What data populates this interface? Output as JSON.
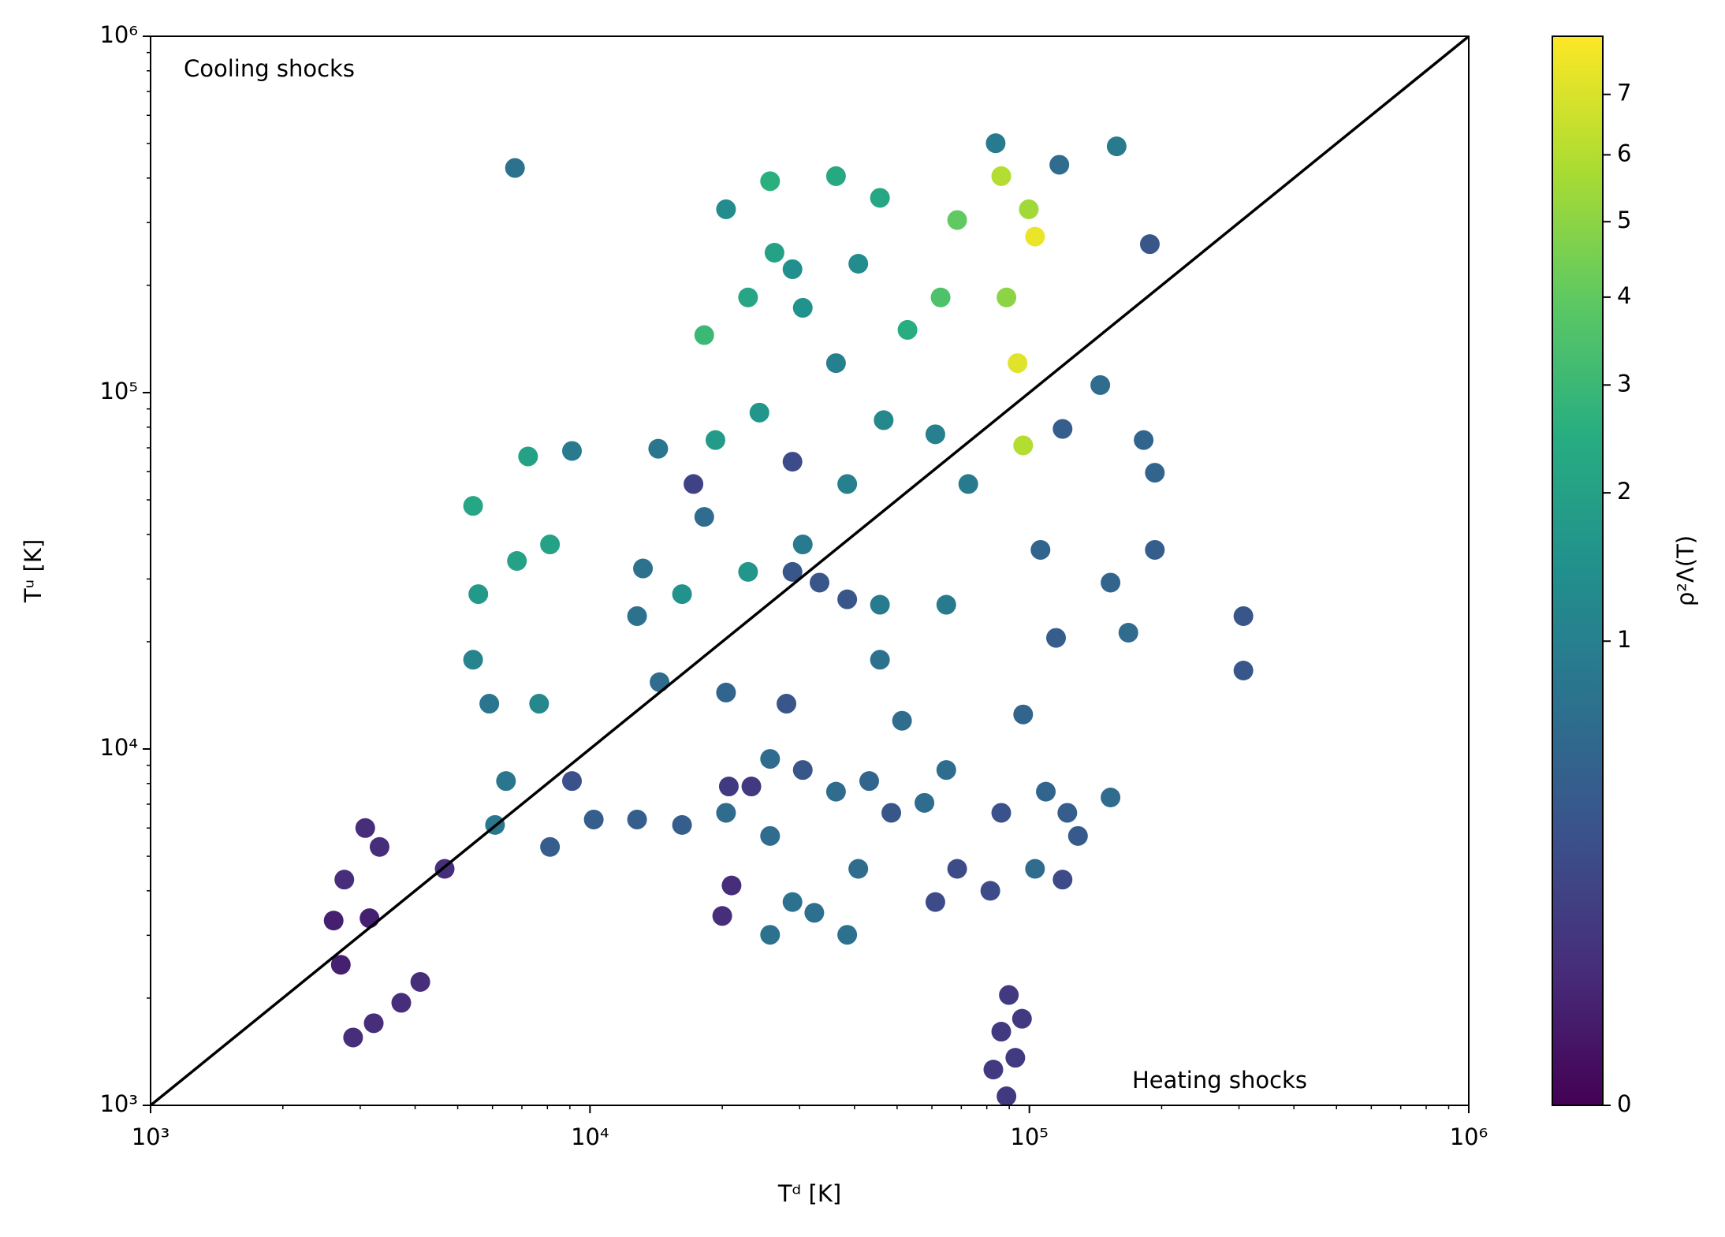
{
  "chart_data": {
    "type": "scatter",
    "xlabel": "Tᵈ [K]",
    "ylabel": "Tᵘ [K]",
    "xscale": "log",
    "yscale": "log",
    "xlim": [
      1000,
      1000000
    ],
    "ylim": [
      1000,
      1000000
    ],
    "xticks": [
      {
        "value": 1000,
        "label": "10³"
      },
      {
        "value": 10000,
        "label": "10⁴"
      },
      {
        "value": 100000,
        "label": "10⁵"
      },
      {
        "value": 1000000,
        "label": "10⁶"
      }
    ],
    "yticks": [
      {
        "value": 1000,
        "label": "10³"
      },
      {
        "value": 10000,
        "label": "10⁴"
      },
      {
        "value": 100000,
        "label": "10⁵"
      },
      {
        "value": 1000000,
        "label": "10⁶"
      }
    ],
    "xminorticks": [
      2000,
      3000,
      4000,
      5000,
      6000,
      7000,
      8000,
      9000,
      20000,
      30000,
      40000,
      50000,
      60000,
      70000,
      80000,
      90000,
      200000,
      300000,
      400000,
      500000,
      600000,
      700000,
      800000,
      900000
    ],
    "yminorticks": [
      2000,
      3000,
      4000,
      5000,
      6000,
      7000,
      8000,
      9000,
      20000,
      30000,
      40000,
      50000,
      60000,
      70000,
      80000,
      90000,
      200000,
      300000,
      400000,
      500000,
      600000,
      700000,
      800000,
      900000
    ],
    "annotations": [
      {
        "text": "Cooling shocks",
        "color": "#0000ff"
      },
      {
        "text": "Heating shocks",
        "color": "#ff0000"
      }
    ],
    "lines": [
      {
        "x": [
          1000,
          1000000
        ],
        "y": [
          1000,
          1000000
        ],
        "color": "#000000"
      }
    ],
    "colormap": "viridis",
    "colorbar": {
      "label": "ρ²Λ(T)",
      "lim": [
        0,
        8.05
      ],
      "gamma": 0.4,
      "ticks": [
        0,
        1,
        2,
        3,
        4,
        5,
        6,
        7
      ]
    },
    "x": [
      6750,
      83800,
      158000,
      117000,
      188000,
      103000,
      94000,
      96800,
      86300,
      99700,
      88700,
      68500,
      62800,
      18200,
      25700,
      36300,
      40800,
      26300,
      30500,
      36300,
      52800,
      45700,
      20400,
      145000,
      182000,
      193000,
      5420,
      7230,
      5570,
      5900,
      7660,
      8110,
      19300,
      24300,
      46600,
      38500,
      61100,
      72600,
      17200,
      28900,
      18200,
      16200,
      22900,
      30500,
      38500,
      30500,
      33300,
      12800,
      14400,
      20400,
      45700,
      64700,
      45700,
      51300,
      106000,
      193000,
      153000,
      307000,
      307000,
      115000,
      96800,
      109000,
      129000,
      103000,
      68500,
      61100,
      81500,
      86300,
      64700,
      43200,
      36300,
      25700,
      20400,
      25700,
      25700,
      28900,
      38500,
      40800,
      32400,
      57700,
      48500,
      6440,
      6080,
      9100,
      8110,
      10200,
      12800,
      16200,
      20700,
      23300,
      21000,
      20000,
      3080,
      3320,
      2760,
      2610,
      3150,
      2710,
      2890,
      3220,
      3720,
      4110,
      4670,
      89800,
      86300,
      96200,
      92900,
      82800,
      88700,
      168000,
      122000,
      153000,
      119000,
      119000,
      28900,
      22900,
      28900,
      28000,
      13200,
      9100,
      14300,
      5420,
      6820
    ],
    "y": [
      427000,
      501000,
      491000,
      436000,
      261000,
      274000,
      121000,
      71100,
      405000,
      327000,
      185000,
      305000,
      185000,
      145000,
      392000,
      405000,
      230000,
      247000,
      173000,
      121000,
      150000,
      352000,
      327000,
      105000,
      73600,
      59600,
      48100,
      66200,
      27200,
      13400,
      13400,
      37500,
      73600,
      87900,
      83700,
      55400,
      76400,
      55400,
      55400,
      64000,
      44800,
      27200,
      31400,
      37500,
      26300,
      8730,
      29300,
      23600,
      15400,
      14400,
      25400,
      25400,
      17800,
      12000,
      36200,
      36200,
      29300,
      23600,
      16600,
      20500,
      12500,
      7590,
      5700,
      4610,
      4610,
      3720,
      4000,
      6620,
      8730,
      8130,
      7590,
      9380,
      6620,
      5700,
      3010,
      3720,
      3010,
      4610,
      3470,
      7060,
      6620,
      8130,
      6120,
      8130,
      5310,
      6340,
      6340,
      6120,
      7850,
      7850,
      4140,
      3400,
      6000,
      5310,
      4300,
      3300,
      3350,
      2480,
      1550,
      1700,
      1940,
      2220,
      4610,
      2040,
      1610,
      1750,
      1360,
      1260,
      1060,
      21200,
      6620,
      7310,
      4300,
      79100,
      222000,
      185000,
      31400,
      13400,
      32100,
      68600,
      69600,
      17800,
      33700
    ],
    "c": [
      0.7,
      0.9,
      0.9,
      0.6,
      0.3,
      7.5,
      7.2,
      6.0,
      6.0,
      5.5,
      5.0,
      4.0,
      3.5,
      3.0,
      2.6,
      2.3,
      1.3,
      2.0,
      1.5,
      1.0,
      2.5,
      2.2,
      1.3,
      0.6,
      0.5,
      0.5,
      2.2,
      2.0,
      1.7,
      0.8,
      1.2,
      2.0,
      1.8,
      1.6,
      1.2,
      1.0,
      1.0,
      0.9,
      0.15,
      0.2,
      0.6,
      1.5,
      1.6,
      0.9,
      0.3,
      0.3,
      0.3,
      0.7,
      0.6,
      0.5,
      0.9,
      0.9,
      0.7,
      0.6,
      0.5,
      0.4,
      0.5,
      0.3,
      0.3,
      0.4,
      0.5,
      0.5,
      0.35,
      0.6,
      0.2,
      0.2,
      0.2,
      0.25,
      0.6,
      0.5,
      0.6,
      0.6,
      0.6,
      0.6,
      0.7,
      0.7,
      0.7,
      0.6,
      0.65,
      0.6,
      0.3,
      0.8,
      0.8,
      0.25,
      0.4,
      0.4,
      0.4,
      0.4,
      0.1,
      0.1,
      0.05,
      0.05,
      0.05,
      0.05,
      0.05,
      0.02,
      0.02,
      0.02,
      0.05,
      0.05,
      0.05,
      0.05,
      0.05,
      0.1,
      0.1,
      0.1,
      0.1,
      0.1,
      0.1,
      0.6,
      0.4,
      0.6,
      0.2,
      0.4,
      1.4,
      2.2,
      0.3,
      0.3,
      0.7,
      0.9,
      0.8,
      1.1,
      2.0
    ]
  }
}
